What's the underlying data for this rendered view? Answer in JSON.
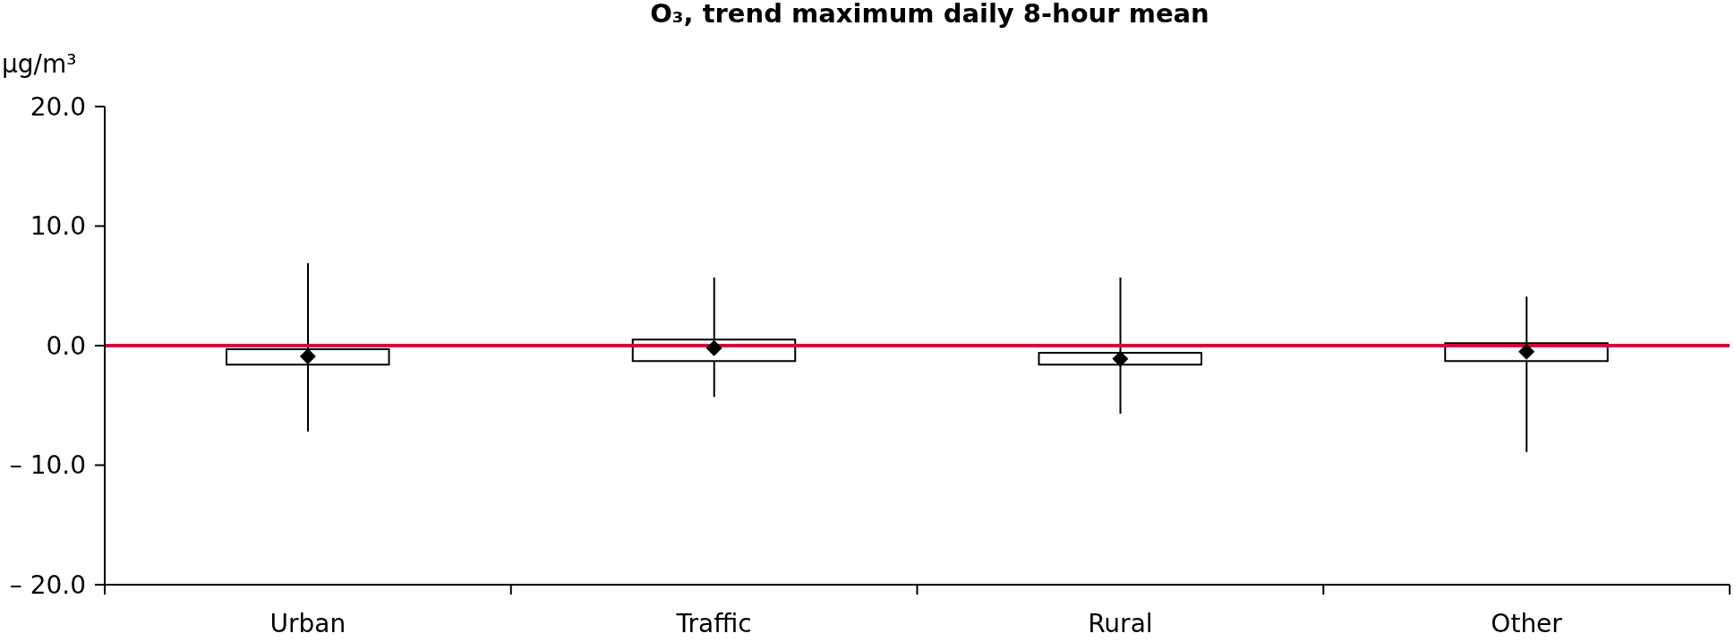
{
  "chart_data": {
    "type": "box",
    "title": "O₃, trend maximum daily 8-hour mean",
    "ylabel": "µg/m³",
    "categories": [
      "Urban",
      "Traffic",
      "Rural",
      "Other"
    ],
    "boxes": [
      {
        "low": -7.2,
        "q1": -1.6,
        "median": -0.9,
        "q3": -0.3,
        "high": 6.9
      },
      {
        "low": -4.3,
        "q1": -1.3,
        "median": -0.2,
        "q3": 0.5,
        "high": 5.7
      },
      {
        "low": -5.7,
        "q1": -1.6,
        "median": -1.1,
        "q3": -0.6,
        "high": 5.7
      },
      {
        "low": -8.9,
        "q1": -1.3,
        "median": -0.5,
        "q3": 0.2,
        "high": 4.1
      }
    ],
    "color": "#000000",
    "marker": "diamond",
    "ylim": [
      -20,
      20
    ],
    "yticks": [
      {
        "value": -20,
        "label": "– 20.0"
      },
      {
        "value": -10,
        "label": "– 10.0"
      },
      {
        "value": 0,
        "label": "0.0"
      },
      {
        "value": 10,
        "label": "10.0"
      },
      {
        "value": 20,
        "label": "20.0"
      }
    ],
    "ref_lines": [
      {
        "axis": "y",
        "value": 0,
        "color": "#e2003b"
      }
    ]
  }
}
